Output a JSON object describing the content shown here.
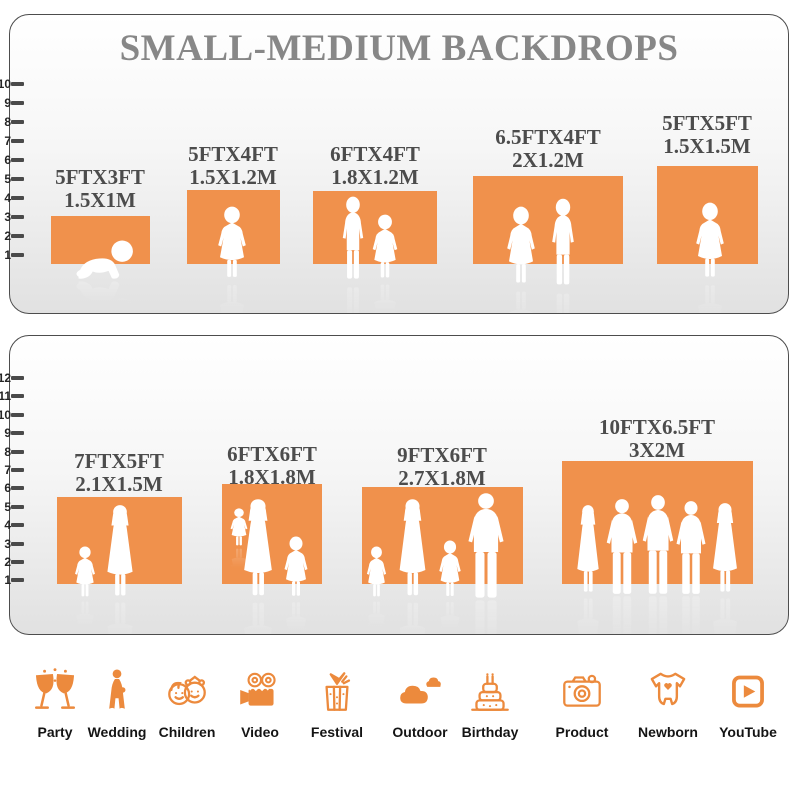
{
  "title": "SMALL-MEDIUM BACKDROPS",
  "colors": {
    "backdrop_orange": "#F0914C",
    "icon_orange": "#EC8A3D"
  },
  "panels": [
    {
      "ruler_marks": [
        "10",
        "9",
        "8",
        "7",
        "6",
        "5",
        "4",
        "3",
        "2",
        "1"
      ],
      "backdrops": [
        {
          "size_ft": "5FTX3FT",
          "size_m": "1.5X1M",
          "figures": "crawling-baby"
        },
        {
          "size_ft": "5FTX4FT",
          "size_m": "1.5X1.2M",
          "figures": "toddler-girl"
        },
        {
          "size_ft": "6FTX4FT",
          "size_m": "1.8X1.2M",
          "figures": "boy-and-girl"
        },
        {
          "size_ft": "6.5FTX4FT",
          "size_m": "2X1.2M",
          "figures": "girl-and-boy"
        },
        {
          "size_ft": "5FTX5FT",
          "size_m": "1.5X1.5M",
          "figures": "girl"
        }
      ]
    },
    {
      "ruler_marks": [
        "12",
        "11",
        "10",
        "9",
        "8",
        "7",
        "6",
        "5",
        "4",
        "3",
        "2",
        "1"
      ],
      "backdrops": [
        {
          "size_ft": "7FTX5FT",
          "size_m": "2.1X1.5M",
          "figures": "mother-and-child"
        },
        {
          "size_ft": "6FTX6FT",
          "size_m": "1.8X1.8M",
          "figures": "mother-baby-and-girl"
        },
        {
          "size_ft": "9FTX6FT",
          "size_m": "2.7X1.8M",
          "figures": "family-of-four"
        },
        {
          "size_ft": "10FTX6.5FT",
          "size_m": "3X2M",
          "figures": "group-of-adults"
        }
      ]
    }
  ],
  "categories": [
    {
      "label": "Party",
      "icon": "party-glasses-icon"
    },
    {
      "label": "Wedding",
      "icon": "bride-icon"
    },
    {
      "label": "Children",
      "icon": "children-faces-icon"
    },
    {
      "label": "Video",
      "icon": "movie-camera-icon"
    },
    {
      "label": "Festival",
      "icon": "gift-box-icon"
    },
    {
      "label": "Outdoor",
      "icon": "clouds-icon"
    },
    {
      "label": "Birthday",
      "icon": "birthday-cake-icon"
    },
    {
      "label": "Product",
      "icon": "photo-camera-icon"
    },
    {
      "label": "Newborn",
      "icon": "baby-onesie-icon"
    },
    {
      "label": "YouTube",
      "icon": "play-button-icon"
    }
  ]
}
